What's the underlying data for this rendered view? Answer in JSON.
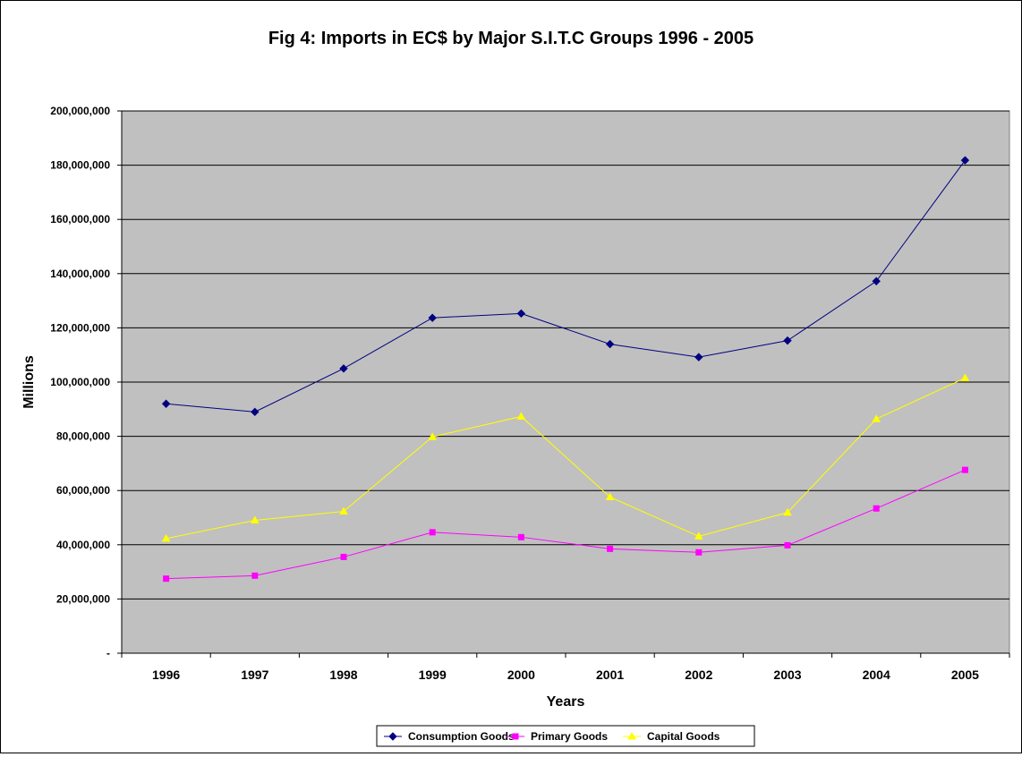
{
  "chart_data": {
    "type": "line",
    "title": "Fig 4: Imports in EC$ by Major S.I.T.C Groups 1996 - 2005",
    "xlabel": "Years",
    "ylabel": "Millions",
    "categories": [
      "1996",
      "1997",
      "1998",
      "1999",
      "2000",
      "2001",
      "2002",
      "2003",
      "2004",
      "2005"
    ],
    "ylim": [
      0,
      200000000
    ],
    "yticks": [
      {
        "value": 0,
        "label": "-"
      },
      {
        "value": 20000000,
        "label": "20,000,000"
      },
      {
        "value": 40000000,
        "label": "40,000,000"
      },
      {
        "value": 60000000,
        "label": "60,000,000"
      },
      {
        "value": 80000000,
        "label": "80,000,000"
      },
      {
        "value": 100000000,
        "label": "100,000,000"
      },
      {
        "value": 120000000,
        "label": "120,000,000"
      },
      {
        "value": 140000000,
        "label": "140,000,000"
      },
      {
        "value": 160000000,
        "label": "160,000,000"
      },
      {
        "value": 180000000,
        "label": "180,000,000"
      },
      {
        "value": 200000000,
        "label": "200,000,000"
      }
    ],
    "grid": true,
    "plot_background": "#c0c0c0",
    "legend_position": "bottom",
    "series": [
      {
        "name": "Consumption Goods",
        "color": "#000080",
        "marker": "diamond",
        "values": [
          92000000,
          89000000,
          105000000,
          123700000,
          125300000,
          114000000,
          109200000,
          115300000,
          137200000,
          181800000
        ]
      },
      {
        "name": "Primary Goods",
        "color": "#ff00ff",
        "marker": "square",
        "values": [
          27500000,
          28600000,
          35500000,
          44600000,
          42800000,
          38500000,
          37200000,
          39800000,
          53400000,
          67600000
        ]
      },
      {
        "name": "Capital Goods",
        "color": "#ffff00",
        "marker": "triangle",
        "values": [
          42300000,
          49000000,
          52300000,
          79800000,
          87300000,
          57600000,
          43100000,
          51900000,
          86400000,
          101500000
        ]
      }
    ]
  }
}
